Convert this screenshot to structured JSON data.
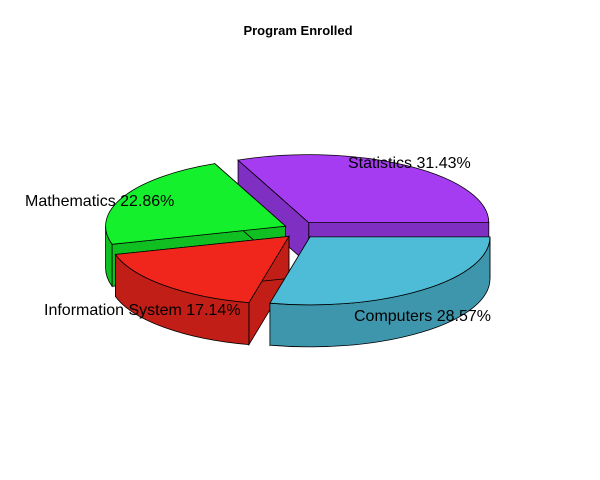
{
  "chart_data": {
    "type": "pie",
    "title": "Program Enrolled",
    "exploded": true,
    "three_d": true,
    "slices": [
      {
        "label": "Statistics",
        "percent_label": "31.43%",
        "value": 31.43,
        "color": "#A63CF2",
        "side_color": "#7F2FC2"
      },
      {
        "label": "Computers",
        "percent_label": "28.57%",
        "value": 28.57,
        "color": "#4EBBD7",
        "side_color": "#3E96AC"
      },
      {
        "label": "Information System",
        "percent_label": "17.14%",
        "value": 17.14,
        "color": "#F0261D",
        "side_color": "#C01E17"
      },
      {
        "label": "Mathematics",
        "percent_label": "22.86%",
        "value": 22.86,
        "color": "#14F02B",
        "side_color": "#10C022"
      }
    ]
  }
}
